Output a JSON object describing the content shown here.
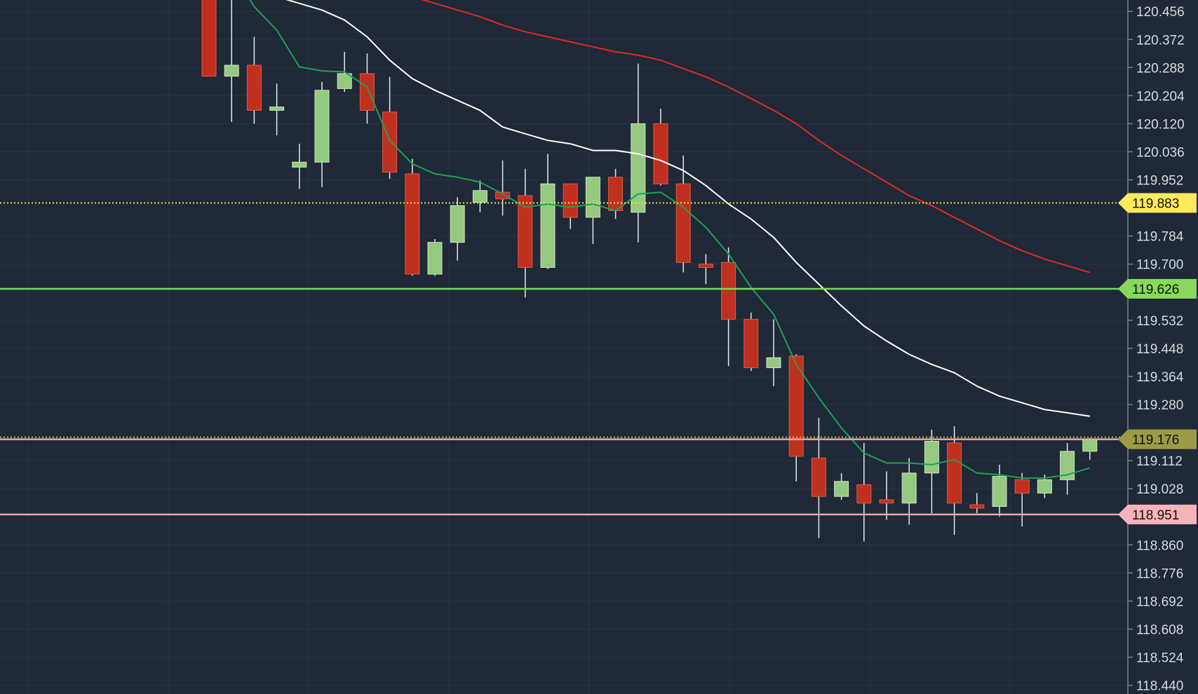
{
  "chart_data": {
    "type": "candlestick",
    "colors": {
      "background": "#1f2937",
      "grid": "#2a3544",
      "axis_text": "#d5dae1",
      "up_body": "#94c97f",
      "down_body": "#c0301f",
      "ma_fast": "#1fa05a",
      "ma_mid": "#ffffff",
      "ma_slow": "#e02a2a",
      "current_price_line": "#f2e23a",
      "support_line": "#7cd955",
      "resistance_line": "#f3a3ac",
      "last_price_badge": "#9d9a45"
    },
    "y_axis": {
      "side": "right",
      "range": [
        118.414,
        120.49
      ],
      "ticks": [
        "120.456",
        "120.372",
        "120.288",
        "120.204",
        "120.120",
        "120.036",
        "119.952",
        "119.784",
        "119.700",
        "119.532",
        "119.448",
        "119.364",
        "119.280",
        "119.112",
        "119.028",
        "118.860",
        "118.776",
        "118.692",
        "118.608",
        "118.524",
        "118.440"
      ]
    },
    "price_lines": [
      {
        "label": "119.883",
        "value": 119.883,
        "style": "dotted",
        "color": "#f2e23a",
        "badge_color": "#ffe95c"
      },
      {
        "label": "119.626",
        "value": 119.626,
        "style": "solid",
        "color": "#7cd955",
        "badge_color": "#86d95a"
      },
      {
        "label": "119.176",
        "value": 119.176,
        "style": "solid",
        "color": "#f3a3ac",
        "badge_color": "#9d9a45"
      },
      {
        "label": "118.951",
        "value": 118.951,
        "style": "solid",
        "color": "#f3a3ac",
        "badge_color": "#f6b3b9"
      }
    ],
    "candles": [
      {
        "o": 120.535,
        "h": 120.62,
        "l": 120.262,
        "c": 120.262
      },
      {
        "o": 120.262,
        "h": 120.52,
        "l": 120.125,
        "c": 120.295
      },
      {
        "o": 120.295,
        "h": 120.38,
        "l": 120.12,
        "c": 120.16
      },
      {
        "o": 120.16,
        "h": 120.24,
        "l": 120.085,
        "c": 120.17
      },
      {
        "o": 119.99,
        "h": 120.06,
        "l": 119.925,
        "c": 120.005
      },
      {
        "o": 120.005,
        "h": 120.245,
        "l": 119.93,
        "c": 120.22
      },
      {
        "o": 120.225,
        "h": 120.335,
        "l": 120.215,
        "c": 120.27
      },
      {
        "o": 120.27,
        "h": 120.33,
        "l": 120.12,
        "c": 120.16
      },
      {
        "o": 120.155,
        "h": 120.26,
        "l": 119.955,
        "c": 119.975
      },
      {
        "o": 119.97,
        "h": 120.015,
        "l": 119.665,
        "c": 119.67
      },
      {
        "o": 119.67,
        "h": 119.775,
        "l": 119.665,
        "c": 119.765
      },
      {
        "o": 119.765,
        "h": 119.9,
        "l": 119.71,
        "c": 119.875
      },
      {
        "o": 119.885,
        "h": 119.95,
        "l": 119.855,
        "c": 119.92
      },
      {
        "o": 119.915,
        "h": 120.01,
        "l": 119.845,
        "c": 119.895
      },
      {
        "o": 119.905,
        "h": 119.985,
        "l": 119.6,
        "c": 119.69
      },
      {
        "o": 119.69,
        "h": 120.03,
        "l": 119.685,
        "c": 119.94
      },
      {
        "o": 119.94,
        "h": 119.94,
        "l": 119.805,
        "c": 119.84
      },
      {
        "o": 119.84,
        "h": 119.96,
        "l": 119.76,
        "c": 119.96
      },
      {
        "o": 119.96,
        "h": 119.985,
        "l": 119.835,
        "c": 119.86
      },
      {
        "o": 119.855,
        "h": 120.3,
        "l": 119.765,
        "c": 120.12
      },
      {
        "o": 120.12,
        "h": 120.165,
        "l": 119.935,
        "c": 119.94
      },
      {
        "o": 119.94,
        "h": 120.025,
        "l": 119.675,
        "c": 119.705
      },
      {
        "o": 119.7,
        "h": 119.73,
        "l": 119.64,
        "c": 119.69
      },
      {
        "o": 119.705,
        "h": 119.75,
        "l": 119.395,
        "c": 119.535
      },
      {
        "o": 119.535,
        "h": 119.555,
        "l": 119.38,
        "c": 119.39
      },
      {
        "o": 119.39,
        "h": 119.535,
        "l": 119.335,
        "c": 119.42
      },
      {
        "o": 119.425,
        "h": 119.43,
        "l": 119.05,
        "c": 119.125
      },
      {
        "o": 119.12,
        "h": 119.24,
        "l": 118.88,
        "c": 119.005
      },
      {
        "o": 119.005,
        "h": 119.075,
        "l": 118.995,
        "c": 119.05
      },
      {
        "o": 119.04,
        "h": 119.165,
        "l": 118.87,
        "c": 118.985
      },
      {
        "o": 118.995,
        "h": 119.08,
        "l": 118.935,
        "c": 118.985
      },
      {
        "o": 118.985,
        "h": 119.12,
        "l": 118.92,
        "c": 119.075
      },
      {
        "o": 119.075,
        "h": 119.205,
        "l": 118.955,
        "c": 119.17
      },
      {
        "o": 119.165,
        "h": 119.215,
        "l": 118.89,
        "c": 118.985
      },
      {
        "o": 118.98,
        "h": 119.015,
        "l": 118.955,
        "c": 118.97
      },
      {
        "o": 118.975,
        "h": 119.1,
        "l": 118.945,
        "c": 119.065
      },
      {
        "o": 119.055,
        "h": 119.075,
        "l": 118.915,
        "c": 119.015
      },
      {
        "o": 119.015,
        "h": 119.07,
        "l": 119.0,
        "c": 119.055
      },
      {
        "o": 119.055,
        "h": 119.165,
        "l": 119.01,
        "c": 119.14
      },
      {
        "o": 119.14,
        "h": 119.18,
        "l": 119.115,
        "c": 119.176
      }
    ],
    "moving_averages": [
      {
        "color": "#1fa05a",
        "values": [
          120.65,
          120.58,
          120.47,
          120.4,
          120.29,
          120.278,
          120.275,
          120.23,
          120.07,
          120.0,
          119.97,
          119.96,
          119.945,
          119.91,
          119.87,
          119.88,
          119.87,
          119.88,
          119.86,
          119.91,
          119.915,
          119.87,
          119.81,
          119.73,
          119.63,
          119.55,
          119.4,
          119.3,
          119.21,
          119.135,
          119.105,
          119.105,
          119.1,
          119.115,
          119.075,
          119.07,
          119.06,
          119.06,
          119.07,
          119.09
        ]
      },
      {
        "color": "#ffffff",
        "values": [
          120.75,
          120.68,
          120.6,
          120.5,
          120.48,
          120.46,
          120.43,
          120.38,
          120.31,
          120.255,
          120.22,
          120.19,
          120.16,
          120.11,
          120.09,
          120.07,
          120.06,
          120.04,
          120.04,
          120.03,
          120.01,
          119.98,
          119.935,
          119.88,
          119.835,
          119.78,
          119.705,
          119.64,
          119.575,
          119.515,
          119.47,
          119.43,
          119.4,
          119.375,
          119.335,
          119.305,
          119.285,
          119.265,
          119.255,
          119.245
        ]
      },
      {
        "color": "#e02a2a",
        "values": [
          120.8,
          120.79,
          120.75,
          120.72,
          120.69,
          120.655,
          120.6,
          120.56,
          120.525,
          120.5,
          120.48,
          120.46,
          120.44,
          120.415,
          120.395,
          120.38,
          120.365,
          120.35,
          120.335,
          120.325,
          120.31,
          120.285,
          120.26,
          120.23,
          120.195,
          120.16,
          120.12,
          120.07,
          120.025,
          119.985,
          119.945,
          119.905,
          119.875,
          119.84,
          119.805,
          119.77,
          119.74,
          119.715,
          119.695,
          119.675
        ]
      }
    ]
  }
}
